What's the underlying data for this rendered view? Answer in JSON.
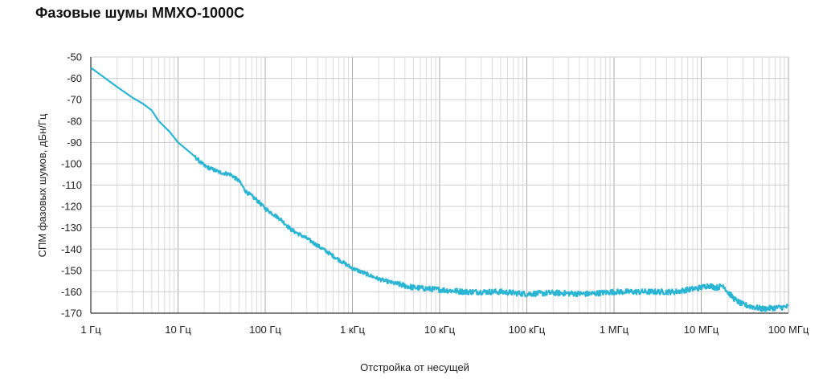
{
  "chart_data": {
    "type": "line",
    "title": "Фазовые шумы MMXO-1000C",
    "xlabel": "Отстройка от несущей",
    "ylabel": "СПМ фазовых шумов, дБн/Гц",
    "x_scale": "log",
    "xlim": [
      1,
      100000000
    ],
    "ylim": [
      -170,
      -50
    ],
    "x_ticks": [
      1,
      10,
      100,
      1000,
      10000,
      100000,
      1000000,
      10000000,
      100000000
    ],
    "x_tick_labels": [
      "1 Гц",
      "10 Гц",
      "100 Гц",
      "1 кГц",
      "10 кГц",
      "100 кГц",
      "1 МГц",
      "10 МГц",
      "100 МГц"
    ],
    "y_ticks": [
      -50,
      -60,
      -70,
      -80,
      -90,
      -100,
      -110,
      -120,
      -130,
      -140,
      -150,
      -160,
      -170
    ],
    "y_tick_labels": [
      "-50",
      "-60",
      "-70",
      "-80",
      "-90",
      "-100",
      "-110",
      "-120",
      "-130",
      "-140",
      "-150",
      "-160",
      "-170"
    ],
    "grid": true,
    "color": "#2bb5d3",
    "series": [
      {
        "x": [
          1,
          2,
          3,
          4,
          5,
          6,
          8,
          10,
          15,
          20,
          30,
          40,
          50,
          60,
          80,
          100,
          150,
          200,
          300,
          500,
          700,
          1000,
          2000,
          3000,
          5000,
          10000,
          20000,
          50000,
          100000,
          200000,
          500000,
          1000000,
          2000000,
          3000000,
          5000000,
          10000000,
          12000000,
          15000000,
          18000000,
          20000000,
          25000000,
          30000000,
          50000000,
          100000000
        ],
        "y": [
          -55,
          -64,
          -69,
          -72,
          -75,
          -80,
          -85,
          -90,
          -96,
          -101,
          -104,
          -105,
          -108,
          -113,
          -117,
          -121,
          -126,
          -131,
          -135,
          -141,
          -145,
          -149,
          -154,
          -156,
          -158,
          -159,
          -160,
          -160,
          -161,
          -160.5,
          -161,
          -160,
          -160,
          -160,
          -160,
          -158,
          -157,
          -158,
          -157,
          -160,
          -164,
          -166,
          -168,
          -167
        ]
      }
    ]
  }
}
